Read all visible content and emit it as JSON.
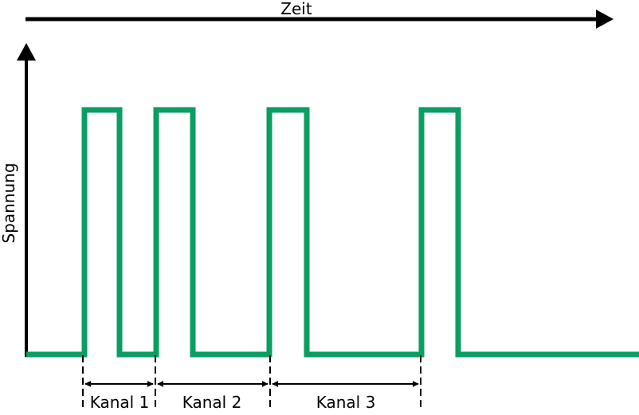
{
  "diagram": {
    "x_axis_label": "Zeit",
    "y_axis_label": "Spannung",
    "signal_color": "#0a9e63",
    "axis_color": "#000000",
    "channels": [
      {
        "label": "Kanal 1"
      },
      {
        "label": "Kanal 2"
      },
      {
        "label": "Kanal 3"
      }
    ]
  }
}
